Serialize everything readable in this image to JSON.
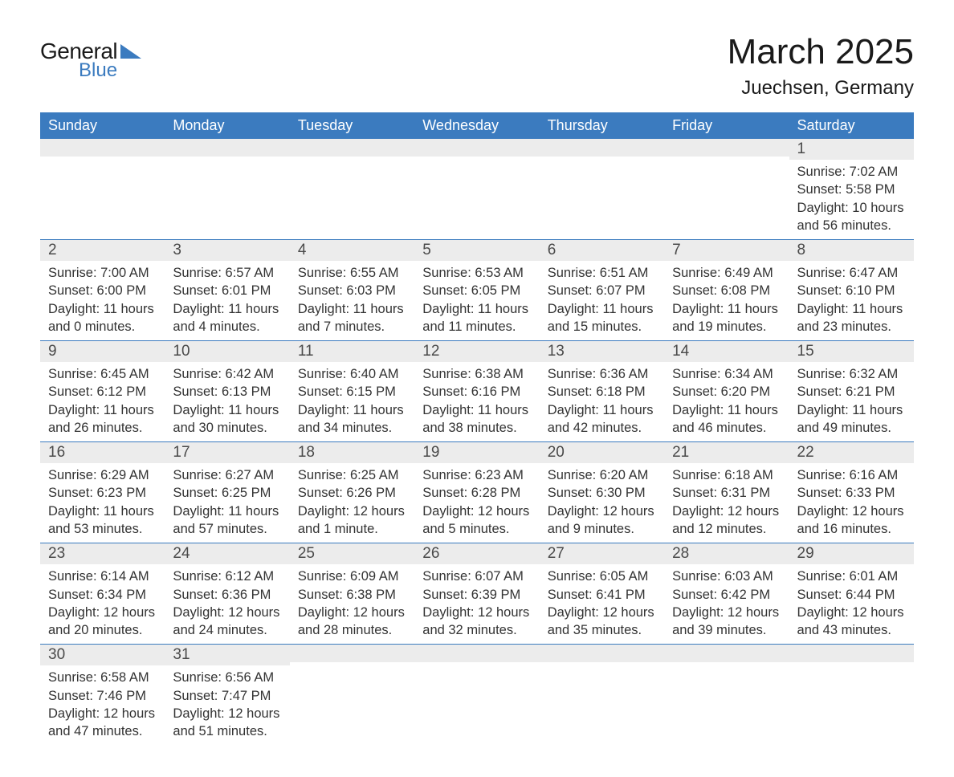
{
  "logo": {
    "text1": "General",
    "text2": "Blue"
  },
  "title": "March 2025",
  "location": "Juechsen, Germany",
  "colors": {
    "header_bg": "#3b7bbf",
    "header_fg": "#ffffff",
    "daynum_bg": "#ececec",
    "border": "#3b7bbf",
    "text": "#333333",
    "background": "#ffffff"
  },
  "fonts": {
    "title_size_pt": 33,
    "location_size_pt": 18,
    "weekday_size_pt": 13,
    "daynum_size_pt": 14,
    "body_size_pt": 12
  },
  "weekdays": [
    "Sunday",
    "Monday",
    "Tuesday",
    "Wednesday",
    "Thursday",
    "Friday",
    "Saturday"
  ],
  "weeks": [
    [
      {
        "n": "",
        "sunrise": "",
        "sunset": "",
        "daylight": ""
      },
      {
        "n": "",
        "sunrise": "",
        "sunset": "",
        "daylight": ""
      },
      {
        "n": "",
        "sunrise": "",
        "sunset": "",
        "daylight": ""
      },
      {
        "n": "",
        "sunrise": "",
        "sunset": "",
        "daylight": ""
      },
      {
        "n": "",
        "sunrise": "",
        "sunset": "",
        "daylight": ""
      },
      {
        "n": "",
        "sunrise": "",
        "sunset": "",
        "daylight": ""
      },
      {
        "n": "1",
        "sunrise": "Sunrise: 7:02 AM",
        "sunset": "Sunset: 5:58 PM",
        "daylight": "Daylight: 10 hours and 56 minutes."
      }
    ],
    [
      {
        "n": "2",
        "sunrise": "Sunrise: 7:00 AM",
        "sunset": "Sunset: 6:00 PM",
        "daylight": "Daylight: 11 hours and 0 minutes."
      },
      {
        "n": "3",
        "sunrise": "Sunrise: 6:57 AM",
        "sunset": "Sunset: 6:01 PM",
        "daylight": "Daylight: 11 hours and 4 minutes."
      },
      {
        "n": "4",
        "sunrise": "Sunrise: 6:55 AM",
        "sunset": "Sunset: 6:03 PM",
        "daylight": "Daylight: 11 hours and 7 minutes."
      },
      {
        "n": "5",
        "sunrise": "Sunrise: 6:53 AM",
        "sunset": "Sunset: 6:05 PM",
        "daylight": "Daylight: 11 hours and 11 minutes."
      },
      {
        "n": "6",
        "sunrise": "Sunrise: 6:51 AM",
        "sunset": "Sunset: 6:07 PM",
        "daylight": "Daylight: 11 hours and 15 minutes."
      },
      {
        "n": "7",
        "sunrise": "Sunrise: 6:49 AM",
        "sunset": "Sunset: 6:08 PM",
        "daylight": "Daylight: 11 hours and 19 minutes."
      },
      {
        "n": "8",
        "sunrise": "Sunrise: 6:47 AM",
        "sunset": "Sunset: 6:10 PM",
        "daylight": "Daylight: 11 hours and 23 minutes."
      }
    ],
    [
      {
        "n": "9",
        "sunrise": "Sunrise: 6:45 AM",
        "sunset": "Sunset: 6:12 PM",
        "daylight": "Daylight: 11 hours and 26 minutes."
      },
      {
        "n": "10",
        "sunrise": "Sunrise: 6:42 AM",
        "sunset": "Sunset: 6:13 PM",
        "daylight": "Daylight: 11 hours and 30 minutes."
      },
      {
        "n": "11",
        "sunrise": "Sunrise: 6:40 AM",
        "sunset": "Sunset: 6:15 PM",
        "daylight": "Daylight: 11 hours and 34 minutes."
      },
      {
        "n": "12",
        "sunrise": "Sunrise: 6:38 AM",
        "sunset": "Sunset: 6:16 PM",
        "daylight": "Daylight: 11 hours and 38 minutes."
      },
      {
        "n": "13",
        "sunrise": "Sunrise: 6:36 AM",
        "sunset": "Sunset: 6:18 PM",
        "daylight": "Daylight: 11 hours and 42 minutes."
      },
      {
        "n": "14",
        "sunrise": "Sunrise: 6:34 AM",
        "sunset": "Sunset: 6:20 PM",
        "daylight": "Daylight: 11 hours and 46 minutes."
      },
      {
        "n": "15",
        "sunrise": "Sunrise: 6:32 AM",
        "sunset": "Sunset: 6:21 PM",
        "daylight": "Daylight: 11 hours and 49 minutes."
      }
    ],
    [
      {
        "n": "16",
        "sunrise": "Sunrise: 6:29 AM",
        "sunset": "Sunset: 6:23 PM",
        "daylight": "Daylight: 11 hours and 53 minutes."
      },
      {
        "n": "17",
        "sunrise": "Sunrise: 6:27 AM",
        "sunset": "Sunset: 6:25 PM",
        "daylight": "Daylight: 11 hours and 57 minutes."
      },
      {
        "n": "18",
        "sunrise": "Sunrise: 6:25 AM",
        "sunset": "Sunset: 6:26 PM",
        "daylight": "Daylight: 12 hours and 1 minute."
      },
      {
        "n": "19",
        "sunrise": "Sunrise: 6:23 AM",
        "sunset": "Sunset: 6:28 PM",
        "daylight": "Daylight: 12 hours and 5 minutes."
      },
      {
        "n": "20",
        "sunrise": "Sunrise: 6:20 AM",
        "sunset": "Sunset: 6:30 PM",
        "daylight": "Daylight: 12 hours and 9 minutes."
      },
      {
        "n": "21",
        "sunrise": "Sunrise: 6:18 AM",
        "sunset": "Sunset: 6:31 PM",
        "daylight": "Daylight: 12 hours and 12 minutes."
      },
      {
        "n": "22",
        "sunrise": "Sunrise: 6:16 AM",
        "sunset": "Sunset: 6:33 PM",
        "daylight": "Daylight: 12 hours and 16 minutes."
      }
    ],
    [
      {
        "n": "23",
        "sunrise": "Sunrise: 6:14 AM",
        "sunset": "Sunset: 6:34 PM",
        "daylight": "Daylight: 12 hours and 20 minutes."
      },
      {
        "n": "24",
        "sunrise": "Sunrise: 6:12 AM",
        "sunset": "Sunset: 6:36 PM",
        "daylight": "Daylight: 12 hours and 24 minutes."
      },
      {
        "n": "25",
        "sunrise": "Sunrise: 6:09 AM",
        "sunset": "Sunset: 6:38 PM",
        "daylight": "Daylight: 12 hours and 28 minutes."
      },
      {
        "n": "26",
        "sunrise": "Sunrise: 6:07 AM",
        "sunset": "Sunset: 6:39 PM",
        "daylight": "Daylight: 12 hours and 32 minutes."
      },
      {
        "n": "27",
        "sunrise": "Sunrise: 6:05 AM",
        "sunset": "Sunset: 6:41 PM",
        "daylight": "Daylight: 12 hours and 35 minutes."
      },
      {
        "n": "28",
        "sunrise": "Sunrise: 6:03 AM",
        "sunset": "Sunset: 6:42 PM",
        "daylight": "Daylight: 12 hours and 39 minutes."
      },
      {
        "n": "29",
        "sunrise": "Sunrise: 6:01 AM",
        "sunset": "Sunset: 6:44 PM",
        "daylight": "Daylight: 12 hours and 43 minutes."
      }
    ],
    [
      {
        "n": "30",
        "sunrise": "Sunrise: 6:58 AM",
        "sunset": "Sunset: 7:46 PM",
        "daylight": "Daylight: 12 hours and 47 minutes."
      },
      {
        "n": "31",
        "sunrise": "Sunrise: 6:56 AM",
        "sunset": "Sunset: 7:47 PM",
        "daylight": "Daylight: 12 hours and 51 minutes."
      },
      {
        "n": "",
        "sunrise": "",
        "sunset": "",
        "daylight": ""
      },
      {
        "n": "",
        "sunrise": "",
        "sunset": "",
        "daylight": ""
      },
      {
        "n": "",
        "sunrise": "",
        "sunset": "",
        "daylight": ""
      },
      {
        "n": "",
        "sunrise": "",
        "sunset": "",
        "daylight": ""
      },
      {
        "n": "",
        "sunrise": "",
        "sunset": "",
        "daylight": ""
      }
    ]
  ]
}
